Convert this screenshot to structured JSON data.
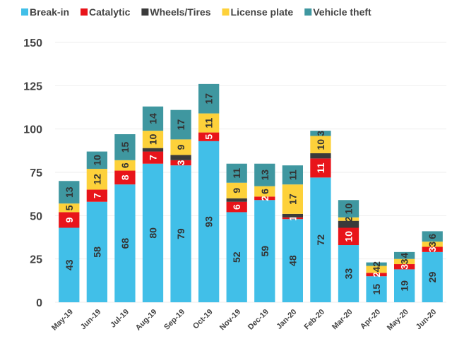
{
  "chart_data": {
    "type": "stacked_bar",
    "categories": [
      "May-19",
      "Jun-19",
      "Jul-19",
      "Aug-19",
      "Sep-19",
      "Oct-19",
      "Nov-19",
      "Dec-19",
      "Jan-20",
      "Feb-20",
      "Mar-20",
      "Apr-20",
      "May-20",
      "Jun-20"
    ],
    "series": [
      {
        "name": "Break-in",
        "color": "#41bfe8",
        "label_color": "#333333",
        "data_labels": true,
        "values": [
          43,
          58,
          68,
          80,
          79,
          93,
          52,
          59,
          48,
          72,
          33,
          15,
          19,
          29
        ]
      },
      {
        "name": "Catalytic",
        "color": "#e8141a",
        "label_color": "#ffffff",
        "data_labels": true,
        "values": [
          9,
          7,
          8,
          7,
          3,
          5,
          6,
          2,
          1,
          11,
          10,
          2,
          3,
          3
        ]
      },
      {
        "name": "Wheels/Tires",
        "color": "#3a3a3a",
        "label_color": "#ffffff",
        "data_labels": false,
        "values": [
          0,
          0,
          0,
          2,
          3,
          0,
          2,
          0,
          2,
          3,
          4,
          0,
          0,
          0
        ]
      },
      {
        "name": "License plate",
        "color": "#fdd13a",
        "label_color": "#333333",
        "data_labels": true,
        "values": [
          5,
          12,
          6,
          10,
          9,
          11,
          9,
          6,
          17,
          10,
          2,
          4,
          3,
          3
        ]
      },
      {
        "name": "Vehicle theft",
        "color": "#3f97a0",
        "label_color": "#333333",
        "data_labels": true,
        "values": [
          13,
          10,
          15,
          14,
          17,
          17,
          11,
          13,
          11,
          3,
          10,
          2,
          4,
          6
        ]
      }
    ],
    "ylim": [
      0,
      150
    ],
    "yticks": [
      0,
      25,
      50,
      75,
      100,
      125,
      150
    ],
    "grid": true,
    "legend": "top"
  }
}
